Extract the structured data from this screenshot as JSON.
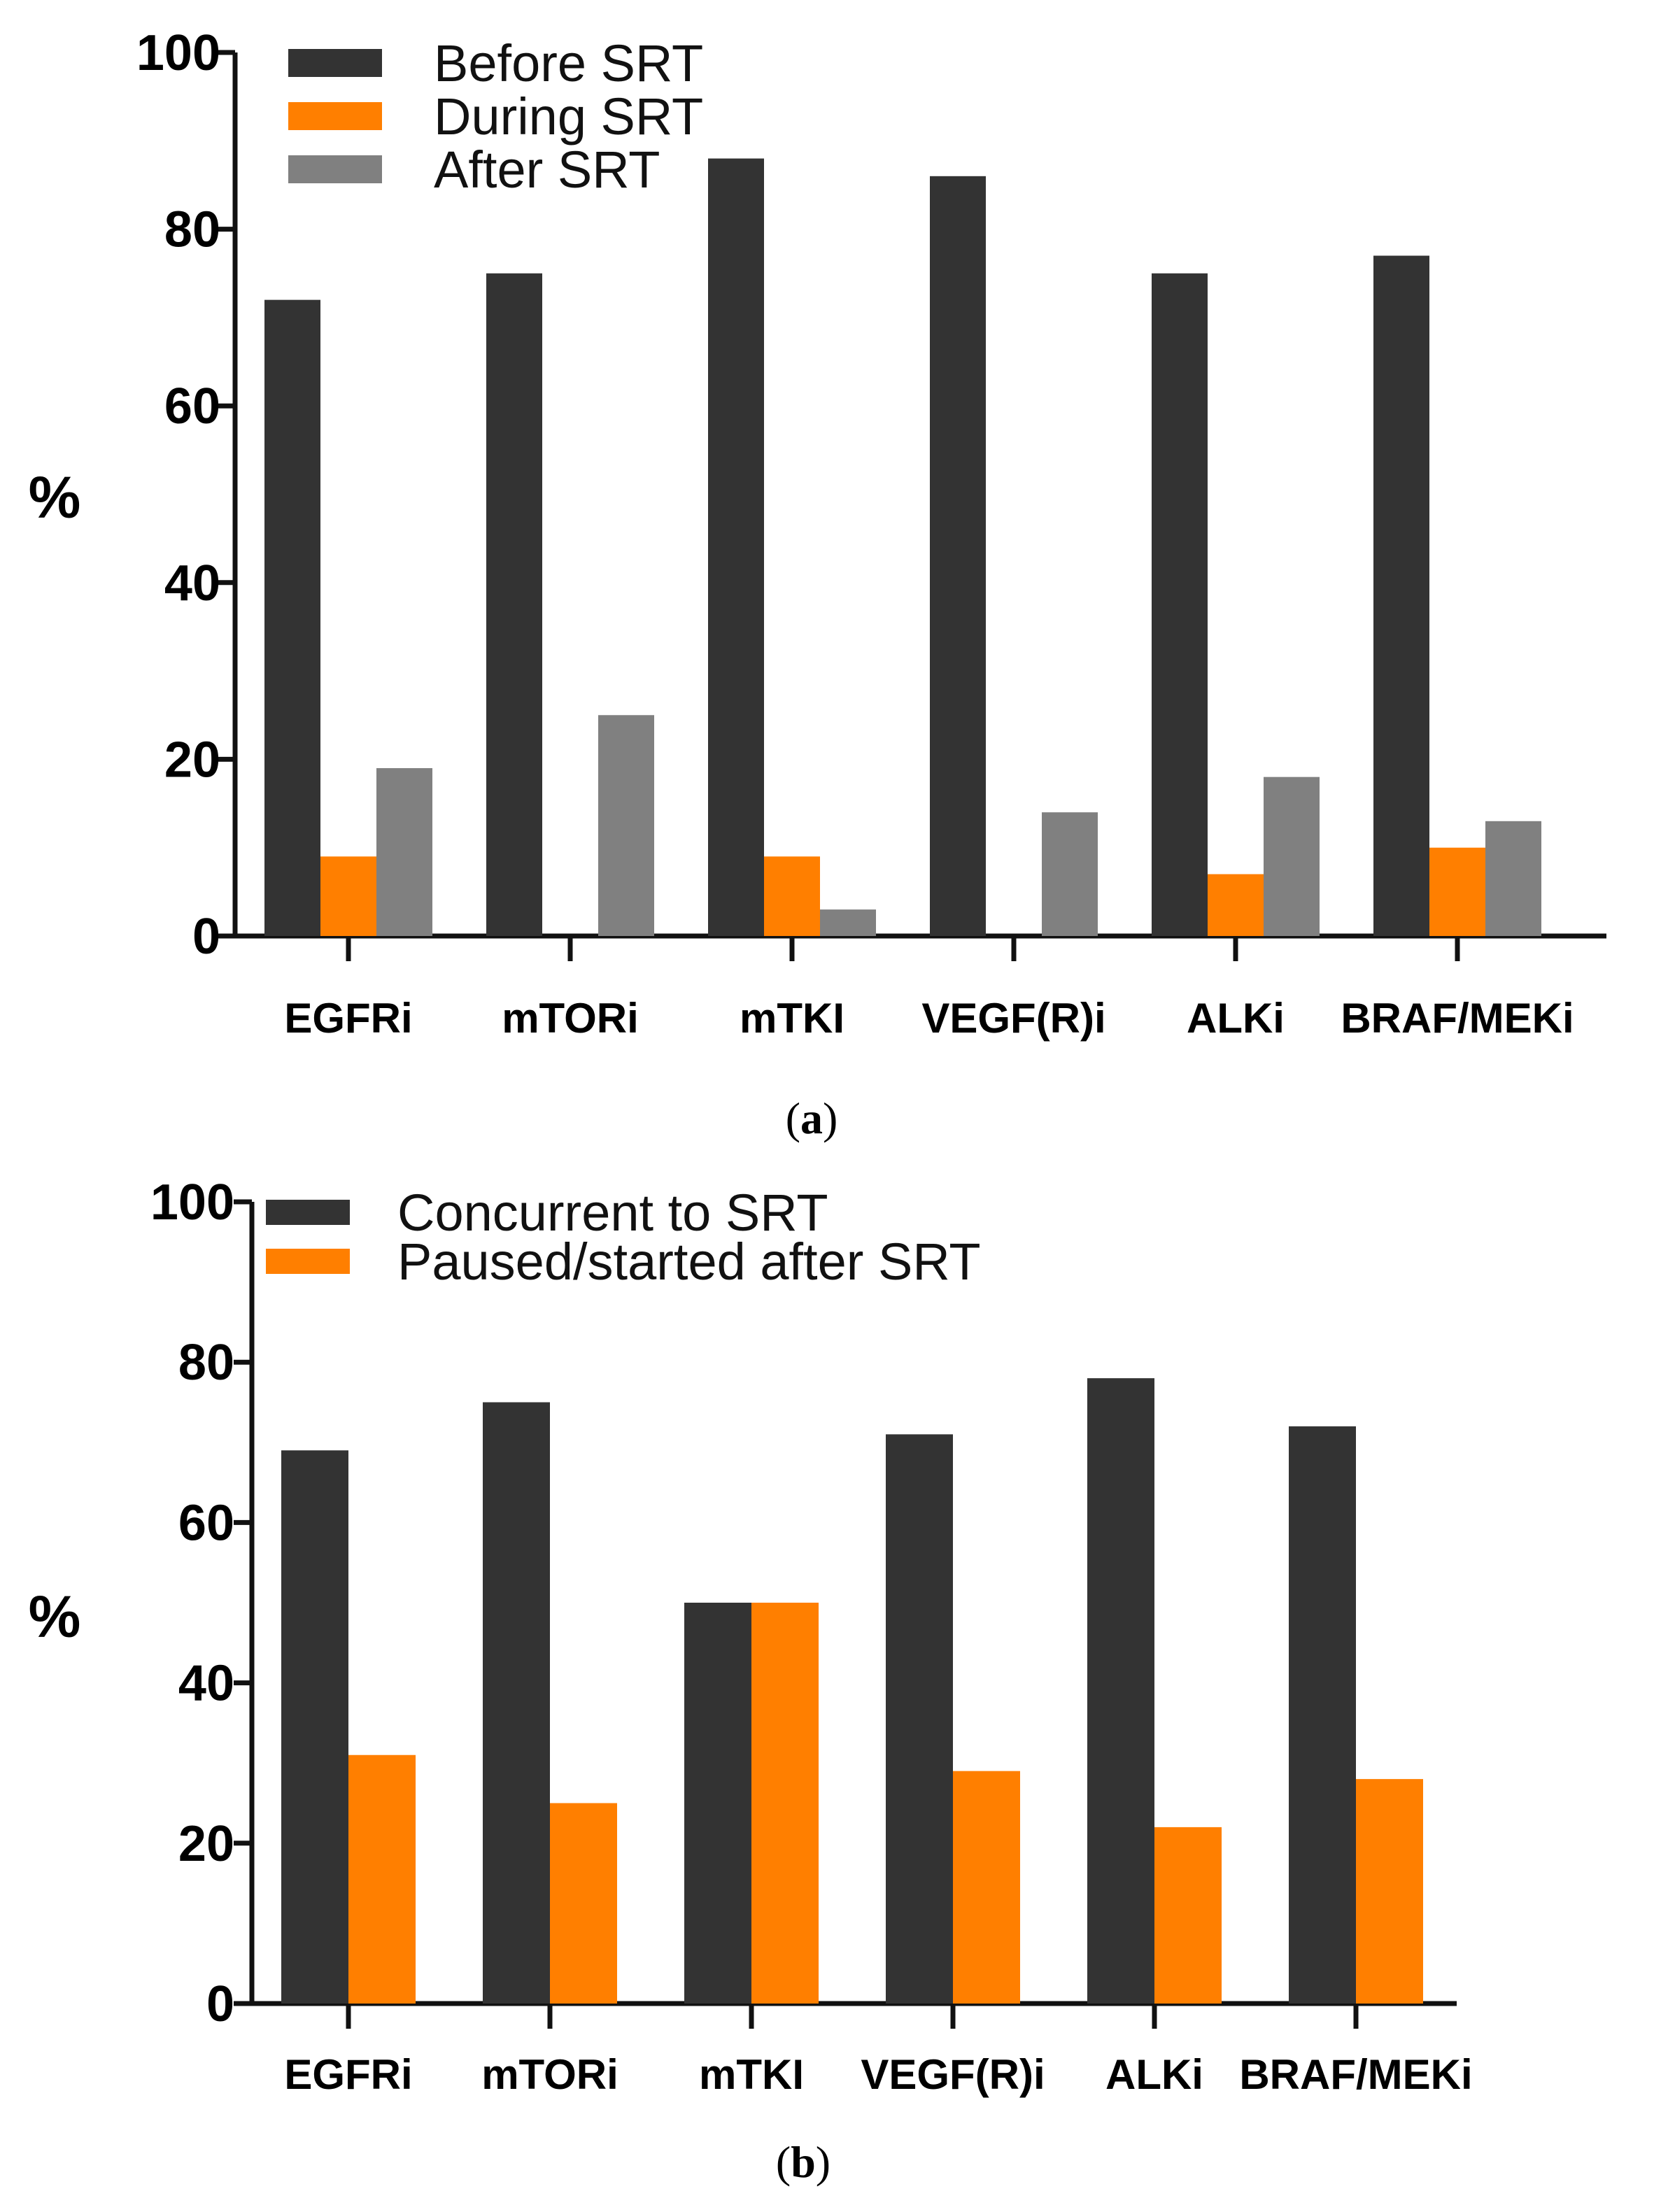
{
  "colors": {
    "before": "#333333",
    "during": "#ff7f00",
    "after": "#808080",
    "concurrent": "#333333",
    "paused": "#ff7f00",
    "axis": "#111111"
  },
  "panel_a": {
    "prefix": "(",
    "letter": "a",
    "suffix": ")"
  },
  "panel_b": {
    "prefix": "(",
    "letter": "b",
    "suffix": ")"
  },
  "chart_data": [
    {
      "type": "bar",
      "title": "",
      "xlabel": "",
      "ylabel": "%",
      "ylim": [
        0,
        100
      ],
      "yticks": [
        "0",
        "20",
        "40",
        "60",
        "80",
        "100"
      ],
      "grid": false,
      "legend_position": "top-left",
      "categories": [
        "EGFRi",
        "mTORi",
        "mTKI",
        "VEGF(R)i",
        "ALKi",
        "BRAF/MEKi"
      ],
      "series": [
        {
          "name": "Before SRT",
          "color_key": "before",
          "values": [
            72,
            75,
            88,
            86,
            75,
            77
          ]
        },
        {
          "name": "During SRT",
          "color_key": "during",
          "values": [
            9,
            0,
            9,
            0,
            7,
            10
          ]
        },
        {
          "name": "After SRT",
          "color_key": "after",
          "values": [
            19,
            25,
            3,
            14,
            18,
            13
          ]
        }
      ]
    },
    {
      "type": "bar",
      "title": "",
      "xlabel": "",
      "ylabel": "%",
      "ylim": [
        0,
        100
      ],
      "yticks": [
        "0",
        "20",
        "40",
        "60",
        "80",
        "100"
      ],
      "grid": false,
      "legend_position": "top-left",
      "categories": [
        "EGFRi",
        "mTORi",
        "mTKI",
        "VEGF(R)i",
        "ALKi",
        "BRAF/MEKi"
      ],
      "series": [
        {
          "name": "Concurrent to SRT",
          "color_key": "concurrent",
          "values": [
            69,
            75,
            50,
            71,
            78,
            72
          ]
        },
        {
          "name": "Paused/started after SRT",
          "color_key": "paused",
          "values": [
            31,
            25,
            50,
            29,
            22,
            28
          ]
        }
      ]
    }
  ]
}
